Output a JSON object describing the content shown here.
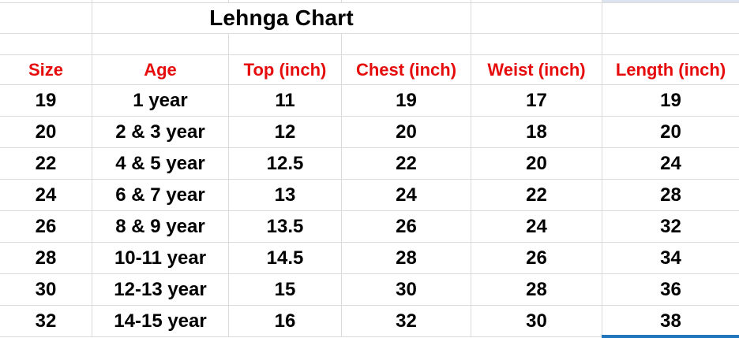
{
  "sheet": {
    "title": "Lehnga Chart",
    "columns": [
      "Size",
      "Age",
      "Top (inch)",
      "Chest (inch)",
      "Weist (inch)",
      "Length (inch)"
    ],
    "rows": [
      [
        "19",
        "1 year",
        "11",
        "19",
        "17",
        "19"
      ],
      [
        "20",
        "2 & 3 year",
        "12",
        "20",
        "18",
        "20"
      ],
      [
        "22",
        "4 & 5 year",
        "12.5",
        "22",
        "20",
        "24"
      ],
      [
        "24",
        "6 & 7 year",
        "13",
        "24",
        "22",
        "28"
      ],
      [
        "26",
        "8 & 9 year",
        "13.5",
        "26",
        "24",
        "32"
      ],
      [
        "28",
        "10-11 year",
        "14.5",
        "28",
        "26",
        "34"
      ],
      [
        "30",
        "12-13 year",
        "15",
        "30",
        "28",
        "36"
      ],
      [
        "32",
        "14-15 year",
        "16",
        "32",
        "30",
        "38"
      ]
    ],
    "colors": {
      "header_text": "#e60c0c",
      "body_text": "#000000",
      "gridline": "#dbdbdb",
      "selection_border": "#2276bc",
      "highlight_fill": "#dce4f2"
    }
  }
}
